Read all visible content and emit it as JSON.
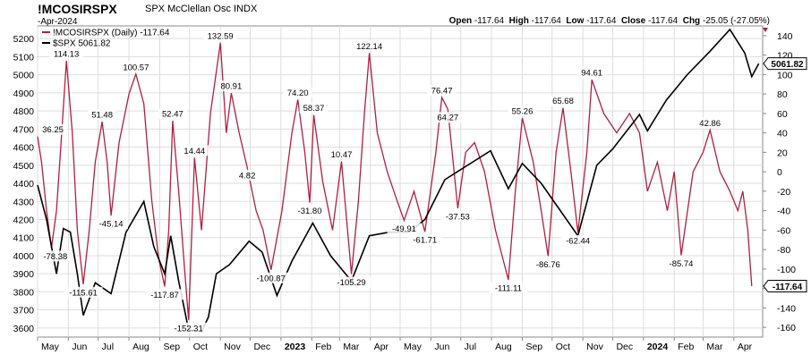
{
  "header": {
    "symbol": "!MCOSIRSPX",
    "description": "SPX McClellan Osc  INDX",
    "date": "-Apr-2024",
    "open_label": "Open",
    "open": "-117.64",
    "high_label": "High",
    "high": "-117.64",
    "low_label": "Low",
    "low": "-117.64",
    "close_label": "Close",
    "close": "-117.64",
    "chg_label": "Chg",
    "chg": "-25.05 (-27.05%)"
  },
  "colors": {
    "oscillator": "#b0203f",
    "spx": "#000000",
    "grid": "#dddddd",
    "frame": "#888888"
  },
  "chart_data": {
    "type": "line",
    "legend": [
      {
        "label": "!MCOSIRSPX (Daily) -117.64",
        "series": "oscillator"
      },
      {
        "label": "$SPX 5061.82",
        "series": "spx"
      }
    ],
    "x_start": "2022-05-01",
    "x_end": "2024-04-30",
    "x_tick_labels": [
      {
        "label": "May",
        "date": "2022-05-01",
        "bold": false
      },
      {
        "label": "Jun",
        "date": "2022-06-01",
        "bold": false
      },
      {
        "label": "Jul",
        "date": "2022-07-01",
        "bold": false
      },
      {
        "label": "Aug",
        "date": "2022-08-01",
        "bold": false
      },
      {
        "label": "Sep",
        "date": "2022-09-01",
        "bold": false
      },
      {
        "label": "Oct",
        "date": "2022-10-01",
        "bold": false
      },
      {
        "label": "Nov",
        "date": "2022-11-01",
        "bold": false
      },
      {
        "label": "Dec",
        "date": "2022-12-01",
        "bold": false
      },
      {
        "label": "2023",
        "date": "2023-01-01",
        "bold": true
      },
      {
        "label": "Feb",
        "date": "2023-02-01",
        "bold": false
      },
      {
        "label": "Mar",
        "date": "2023-03-01",
        "bold": false
      },
      {
        "label": "Apr",
        "date": "2023-04-01",
        "bold": false
      },
      {
        "label": "May",
        "date": "2023-05-01",
        "bold": false
      },
      {
        "label": "Jun",
        "date": "2023-06-01",
        "bold": false
      },
      {
        "label": "Jul",
        "date": "2023-07-01",
        "bold": false
      },
      {
        "label": "Aug",
        "date": "2023-08-01",
        "bold": false
      },
      {
        "label": "Sep",
        "date": "2023-09-01",
        "bold": false
      },
      {
        "label": "Oct",
        "date": "2023-10-01",
        "bold": false
      },
      {
        "label": "Nov",
        "date": "2023-11-01",
        "bold": false
      },
      {
        "label": "Dec",
        "date": "2023-12-01",
        "bold": false
      },
      {
        "label": "2024",
        "date": "2024-01-01",
        "bold": true
      },
      {
        "label": "Feb",
        "date": "2024-02-01",
        "bold": false
      },
      {
        "label": "Mar",
        "date": "2024-03-01",
        "bold": false
      },
      {
        "label": "Apr",
        "date": "2024-04-01",
        "bold": false
      }
    ],
    "left_axis": {
      "series": "spx",
      "min": 3550,
      "max": 5270,
      "ticks": [
        3600,
        3700,
        3800,
        3900,
        4000,
        4100,
        4200,
        4300,
        4400,
        4500,
        4600,
        4700,
        4800,
        4900,
        5000,
        5100,
        5200
      ]
    },
    "right_axis": {
      "series": "oscillator",
      "min": -170,
      "max": 150,
      "ticks": [
        140,
        120,
        100,
        80,
        60,
        40,
        20,
        0,
        -20,
        -40,
        -60,
        -80,
        -100,
        -120,
        -140,
        -160
      ]
    },
    "last_values": {
      "spx": "5061.82",
      "oscillator": "-117.64"
    },
    "oscillator": [
      {
        "date": "2022-05-01",
        "value": 36.25,
        "label": "36.25"
      },
      {
        "date": "2022-05-05",
        "value": 10
      },
      {
        "date": "2022-05-10",
        "value": -40
      },
      {
        "date": "2022-05-15",
        "value": -78.38,
        "label": "-78.38"
      },
      {
        "date": "2022-05-20",
        "value": -40
      },
      {
        "date": "2022-05-24",
        "value": 20
      },
      {
        "date": "2022-05-30",
        "value": 114.13,
        "label": "114.13"
      },
      {
        "date": "2022-06-05",
        "value": 40
      },
      {
        "date": "2022-06-10",
        "value": -60
      },
      {
        "date": "2022-06-16",
        "value": -115.61,
        "label": "-115.61"
      },
      {
        "date": "2022-06-22",
        "value": -60
      },
      {
        "date": "2022-06-28",
        "value": 10
      },
      {
        "date": "2022-07-05",
        "value": 51.48,
        "label": "51.48"
      },
      {
        "date": "2022-07-10",
        "value": 10
      },
      {
        "date": "2022-07-14",
        "value": -45.14,
        "label": "-45.14"
      },
      {
        "date": "2022-07-22",
        "value": 30
      },
      {
        "date": "2022-08-01",
        "value": 80
      },
      {
        "date": "2022-08-08",
        "value": 100.57,
        "label": "100.57"
      },
      {
        "date": "2022-08-16",
        "value": 70
      },
      {
        "date": "2022-08-24",
        "value": -30
      },
      {
        "date": "2022-08-31",
        "value": -90
      },
      {
        "date": "2022-09-06",
        "value": -117.87,
        "label": "-117.87"
      },
      {
        "date": "2022-09-10",
        "value": -60
      },
      {
        "date": "2022-09-14",
        "value": 52.47,
        "label": "52.47"
      },
      {
        "date": "2022-09-20",
        "value": -20
      },
      {
        "date": "2022-09-26",
        "value": -100
      },
      {
        "date": "2022-09-30",
        "value": -152.31,
        "label": "-152.31"
      },
      {
        "date": "2022-10-06",
        "value": 14.44,
        "label": "14.44"
      },
      {
        "date": "2022-10-13",
        "value": -60
      },
      {
        "date": "2022-10-22",
        "value": 60
      },
      {
        "date": "2022-11-01",
        "value": 132.59,
        "label": "132.59"
      },
      {
        "date": "2022-11-07",
        "value": 40
      },
      {
        "date": "2022-11-12",
        "value": 80.91,
        "label": "80.91"
      },
      {
        "date": "2022-11-20",
        "value": 40
      },
      {
        "date": "2022-11-28",
        "value": 4.82,
        "label": "4.82"
      },
      {
        "date": "2022-12-07",
        "value": -40
      },
      {
        "date": "2022-12-14",
        "value": -60
      },
      {
        "date": "2022-12-22",
        "value": -100.87,
        "label": "-100.87"
      },
      {
        "date": "2023-01-02",
        "value": -40
      },
      {
        "date": "2023-01-12",
        "value": 40
      },
      {
        "date": "2023-01-18",
        "value": 74.2,
        "label": "74.20"
      },
      {
        "date": "2023-01-25",
        "value": 20
      },
      {
        "date": "2023-01-30",
        "value": -31.8,
        "label": "-31.80"
      },
      {
        "date": "2023-02-03",
        "value": 58.37,
        "label": "58.37"
      },
      {
        "date": "2023-02-12",
        "value": -10
      },
      {
        "date": "2023-02-22",
        "value": -60
      },
      {
        "date": "2023-03-03",
        "value": 10.47,
        "label": "10.47"
      },
      {
        "date": "2023-03-13",
        "value": -105.29,
        "label": "-105.29"
      },
      {
        "date": "2023-03-20",
        "value": -30
      },
      {
        "date": "2023-03-26",
        "value": 60
      },
      {
        "date": "2023-03-31",
        "value": 122.14,
        "label": "122.14"
      },
      {
        "date": "2023-04-08",
        "value": 40
      },
      {
        "date": "2023-04-18",
        "value": 0
      },
      {
        "date": "2023-04-28",
        "value": -30
      },
      {
        "date": "2023-05-05",
        "value": -49.91,
        "label": "-49.91"
      },
      {
        "date": "2023-05-15",
        "value": -20
      },
      {
        "date": "2023-05-26",
        "value": -61.71,
        "label": "-61.71"
      },
      {
        "date": "2023-06-06",
        "value": 20
      },
      {
        "date": "2023-06-12",
        "value": 76.47,
        "label": "76.47"
      },
      {
        "date": "2023-06-18",
        "value": 64.27,
        "label": "64.27"
      },
      {
        "date": "2023-06-28",
        "value": -37.53,
        "label": "-37.53"
      },
      {
        "date": "2023-07-06",
        "value": 20
      },
      {
        "date": "2023-07-15",
        "value": 30
      },
      {
        "date": "2023-07-25",
        "value": 0
      },
      {
        "date": "2023-08-05",
        "value": -60
      },
      {
        "date": "2023-08-18",
        "value": -111.11,
        "label": "-111.11"
      },
      {
        "date": "2023-08-25",
        "value": -20
      },
      {
        "date": "2023-09-01",
        "value": 55.26,
        "label": "55.26"
      },
      {
        "date": "2023-09-12",
        "value": 10
      },
      {
        "date": "2023-09-20",
        "value": -40
      },
      {
        "date": "2023-09-27",
        "value": -86.76,
        "label": "-86.76"
      },
      {
        "date": "2023-10-05",
        "value": 20
      },
      {
        "date": "2023-10-12",
        "value": 65.68,
        "label": "65.68"
      },
      {
        "date": "2023-10-20",
        "value": 0
      },
      {
        "date": "2023-10-27",
        "value": -62.44,
        "label": "-62.44"
      },
      {
        "date": "2023-11-05",
        "value": 20
      },
      {
        "date": "2023-11-10",
        "value": 94.61,
        "label": "94.61"
      },
      {
        "date": "2023-11-22",
        "value": 60
      },
      {
        "date": "2023-12-05",
        "value": 40
      },
      {
        "date": "2023-12-18",
        "value": 60
      },
      {
        "date": "2023-12-28",
        "value": 40
      },
      {
        "date": "2024-01-05",
        "value": -20
      },
      {
        "date": "2024-01-15",
        "value": 10
      },
      {
        "date": "2024-01-25",
        "value": -40
      },
      {
        "date": "2024-02-01",
        "value": 0
      },
      {
        "date": "2024-02-08",
        "value": -85.74,
        "label": "-85.74"
      },
      {
        "date": "2024-02-20",
        "value": 0
      },
      {
        "date": "2024-03-01",
        "value": 20
      },
      {
        "date": "2024-03-08",
        "value": 42.86,
        "label": "42.86"
      },
      {
        "date": "2024-03-18",
        "value": 0
      },
      {
        "date": "2024-03-28",
        "value": -20
      },
      {
        "date": "2024-04-05",
        "value": -40
      },
      {
        "date": "2024-04-10",
        "value": -20
      },
      {
        "date": "2024-04-15",
        "value": -60
      },
      {
        "date": "2024-04-19",
        "value": -117.64
      }
    ],
    "spx": [
      {
        "date": "2022-05-01",
        "value": 4390
      },
      {
        "date": "2022-05-10",
        "value": 4200
      },
      {
        "date": "2022-05-20",
        "value": 3900
      },
      {
        "date": "2022-05-27",
        "value": 4150
      },
      {
        "date": "2022-06-03",
        "value": 4130
      },
      {
        "date": "2022-06-10",
        "value": 3900
      },
      {
        "date": "2022-06-16",
        "value": 3670
      },
      {
        "date": "2022-06-28",
        "value": 3850
      },
      {
        "date": "2022-07-14",
        "value": 3790
      },
      {
        "date": "2022-07-29",
        "value": 4130
      },
      {
        "date": "2022-08-16",
        "value": 4300
      },
      {
        "date": "2022-08-26",
        "value": 4050
      },
      {
        "date": "2022-09-06",
        "value": 3900
      },
      {
        "date": "2022-09-12",
        "value": 4110
      },
      {
        "date": "2022-09-20",
        "value": 3860
      },
      {
        "date": "2022-09-30",
        "value": 3590
      },
      {
        "date": "2022-10-13",
        "value": 3580
      },
      {
        "date": "2022-10-20",
        "value": 3660
      },
      {
        "date": "2022-10-28",
        "value": 3900
      },
      {
        "date": "2022-11-10",
        "value": 3950
      },
      {
        "date": "2022-11-30",
        "value": 4080
      },
      {
        "date": "2022-12-13",
        "value": 4020
      },
      {
        "date": "2022-12-28",
        "value": 3780
      },
      {
        "date": "2023-01-12",
        "value": 3970
      },
      {
        "date": "2023-02-02",
        "value": 4180
      },
      {
        "date": "2023-02-20",
        "value": 4000
      },
      {
        "date": "2023-03-13",
        "value": 3860
      },
      {
        "date": "2023-03-31",
        "value": 4110
      },
      {
        "date": "2023-04-20",
        "value": 4130
      },
      {
        "date": "2023-05-10",
        "value": 4130
      },
      {
        "date": "2023-05-26",
        "value": 4200
      },
      {
        "date": "2023-06-15",
        "value": 4420
      },
      {
        "date": "2023-07-31",
        "value": 4580
      },
      {
        "date": "2023-08-18",
        "value": 4370
      },
      {
        "date": "2023-09-01",
        "value": 4510
      },
      {
        "date": "2023-09-20",
        "value": 4400
      },
      {
        "date": "2023-10-27",
        "value": 4110
      },
      {
        "date": "2023-11-15",
        "value": 4500
      },
      {
        "date": "2023-12-01",
        "value": 4590
      },
      {
        "date": "2023-12-28",
        "value": 4780
      },
      {
        "date": "2024-01-05",
        "value": 4690
      },
      {
        "date": "2024-01-24",
        "value": 4860
      },
      {
        "date": "2024-02-14",
        "value": 5000
      },
      {
        "date": "2024-03-08",
        "value": 5130
      },
      {
        "date": "2024-03-28",
        "value": 5250
      },
      {
        "date": "2024-04-12",
        "value": 5120
      },
      {
        "date": "2024-04-19",
        "value": 4990
      },
      {
        "date": "2024-04-26",
        "value": 5061.82
      }
    ]
  }
}
